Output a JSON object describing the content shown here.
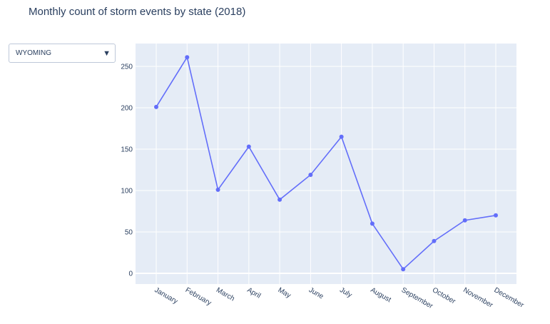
{
  "title": "Monthly count of storm events by state (2018)",
  "dropdown": {
    "selected": "WYOMING"
  },
  "colors": {
    "line": "#636efa",
    "plot_bg": "#e5ecf6",
    "grid": "#ffffff",
    "text": "#2a3f5f"
  },
  "chart_data": {
    "type": "line",
    "title": "Monthly count of storm events by state (2018)",
    "xlabel": "",
    "ylabel": "",
    "categories": [
      "January",
      "February",
      "March",
      "April",
      "May",
      "June",
      "July",
      "August",
      "September",
      "October",
      "November",
      "December"
    ],
    "values": [
      201,
      261,
      101,
      153,
      89,
      119,
      165,
      60,
      5,
      39,
      64,
      70
    ],
    "ylim": [
      -12,
      278
    ],
    "yticks": [
      0,
      50,
      100,
      150,
      200,
      250
    ],
    "grid": true,
    "markers": true
  }
}
